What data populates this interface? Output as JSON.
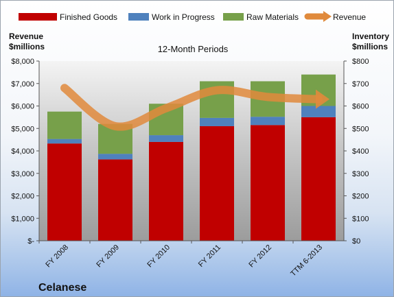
{
  "chart_data": {
    "type": "bar",
    "stacked": true,
    "subtitle": "12-Month Periods",
    "company": "Celanese",
    "left_axis_label_line1": "Revenue",
    "left_axis_label_line2": "$millions",
    "right_axis_label_line1": "Inventory",
    "right_axis_label_line2": "$millions",
    "categories": [
      "FY 2008",
      "FY 2009",
      "FY 2010",
      "FY 2011",
      "FY 2012",
      "TTM 6-2013"
    ],
    "left_ticks": [
      "$-",
      "$1,000",
      "$2,000",
      "$3,000",
      "$4,000",
      "$5,000",
      "$6,000",
      "$7,000",
      "$8,000"
    ],
    "right_ticks": [
      "$0",
      "$100",
      "$200",
      "$300",
      "$400",
      "$500",
      "$600",
      "$700",
      "$800"
    ],
    "ylim_left": [
      0,
      8000
    ],
    "ylim_right": [
      0,
      800
    ],
    "series": [
      {
        "name": "Finished Goods",
        "axis": "right",
        "color": "#c00000",
        "values": [
          433,
          362,
          440,
          510,
          515,
          550
        ]
      },
      {
        "name": "Work in Progress",
        "axis": "right",
        "color": "#4f81bd",
        "values": [
          20,
          25,
          30,
          37,
          37,
          50
        ]
      },
      {
        "name": "Raw Materials",
        "axis": "right",
        "color": "#77a04a",
        "values": [
          122,
          133,
          140,
          163,
          158,
          140
        ]
      },
      {
        "name": "Revenue",
        "axis": "left",
        "type": "line",
        "color": "#e08a3c",
        "values": [
          6800,
          5100,
          5900,
          6700,
          6400,
          6300
        ]
      }
    ],
    "legend_position": "top",
    "grid": false
  }
}
